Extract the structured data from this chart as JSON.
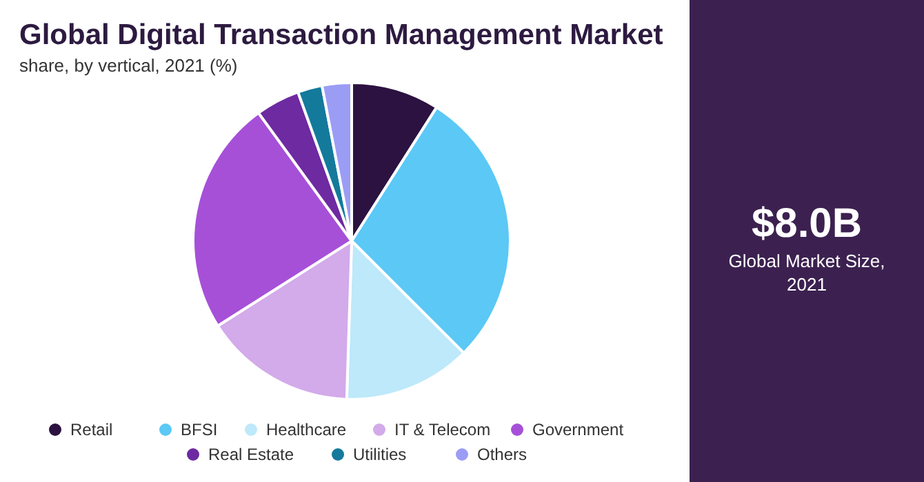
{
  "chart_data": {
    "type": "pie",
    "title": "Global Digital Transaction Management Market",
    "subtitle": "share, by vertical, 2021 (%)",
    "categories": [
      "Retail",
      "BFSI",
      "Healthcare",
      "IT & Telecom",
      "Government",
      "Real Estate",
      "Utilities",
      "Others"
    ],
    "values": [
      9,
      28.5,
      13,
      15.5,
      24,
      4.5,
      2.5,
      3
    ],
    "colors": [
      "#2b1240",
      "#5bc8f5",
      "#bde9fa",
      "#d3aaea",
      "#a650d8",
      "#6e2aa0",
      "#137a9c",
      "#9b9df5"
    ],
    "legend": "bottom",
    "annotations": [
      "$8.0B",
      "Global Market Size, 2021"
    ]
  }
}
